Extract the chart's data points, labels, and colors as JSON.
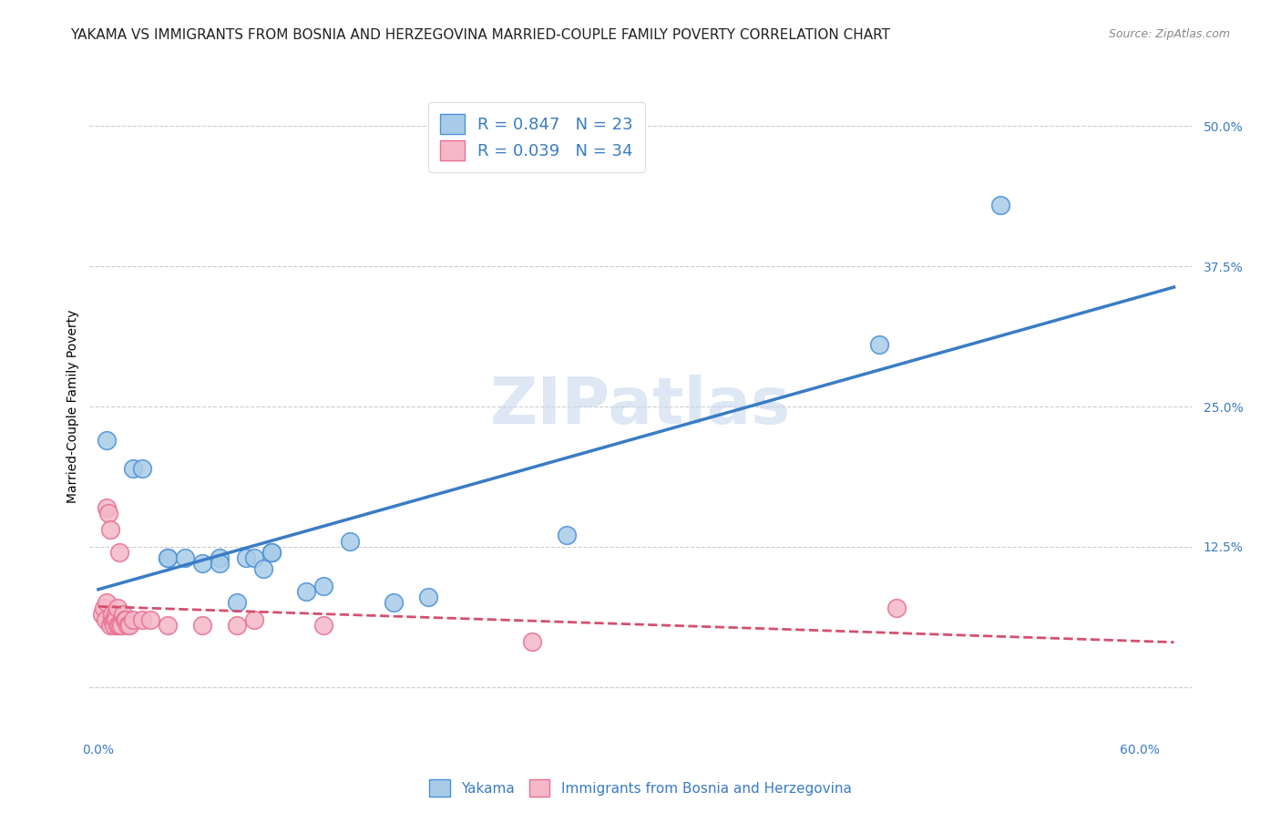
{
  "title": "YAKAMA VS IMMIGRANTS FROM BOSNIA AND HERZEGOVINA MARRIED-COUPLE FAMILY POVERTY CORRELATION CHART",
  "source": "Source: ZipAtlas.com",
  "ylabel": "Married-Couple Family Poverty",
  "xlim": [
    -0.005,
    0.63
  ],
  "ylim": [
    -0.04,
    0.54
  ],
  "xticks": [
    0.0,
    0.15,
    0.3,
    0.45,
    0.6
  ],
  "xtick_labels": [
    "0.0%",
    "",
    "",
    "",
    "60.0%"
  ],
  "yticks": [
    0.0,
    0.125,
    0.25,
    0.375,
    0.5
  ],
  "ytick_labels": [
    "",
    "12.5%",
    "25.0%",
    "37.5%",
    "50.0%"
  ],
  "watermark": "ZIPatlas",
  "blue_R": 0.847,
  "blue_N": 23,
  "pink_R": 0.039,
  "pink_N": 34,
  "blue_color": "#a8cce8",
  "pink_color": "#f4b8c8",
  "blue_edge_color": "#4a90d9",
  "pink_edge_color": "#e87090",
  "blue_line_color": "#3a7cc4",
  "pink_line_color": "#d45070",
  "blue_points": [
    [
      0.005,
      0.22
    ],
    [
      0.02,
      0.195
    ],
    [
      0.025,
      0.195
    ],
    [
      0.04,
      0.115
    ],
    [
      0.04,
      0.115
    ],
    [
      0.05,
      0.115
    ],
    [
      0.06,
      0.11
    ],
    [
      0.07,
      0.115
    ],
    [
      0.07,
      0.11
    ],
    [
      0.08,
      0.075
    ],
    [
      0.085,
      0.115
    ],
    [
      0.09,
      0.115
    ],
    [
      0.095,
      0.105
    ],
    [
      0.1,
      0.12
    ],
    [
      0.1,
      0.12
    ],
    [
      0.12,
      0.085
    ],
    [
      0.13,
      0.09
    ],
    [
      0.145,
      0.13
    ],
    [
      0.17,
      0.075
    ],
    [
      0.19,
      0.08
    ],
    [
      0.27,
      0.135
    ],
    [
      0.45,
      0.305
    ],
    [
      0.52,
      0.43
    ]
  ],
  "pink_points": [
    [
      0.002,
      0.065
    ],
    [
      0.003,
      0.07
    ],
    [
      0.004,
      0.06
    ],
    [
      0.005,
      0.075
    ],
    [
      0.005,
      0.16
    ],
    [
      0.006,
      0.155
    ],
    [
      0.007,
      0.14
    ],
    [
      0.007,
      0.055
    ],
    [
      0.008,
      0.06
    ],
    [
      0.008,
      0.065
    ],
    [
      0.009,
      0.06
    ],
    [
      0.009,
      0.055
    ],
    [
      0.01,
      0.065
    ],
    [
      0.01,
      0.06
    ],
    [
      0.011,
      0.07
    ],
    [
      0.011,
      0.055
    ],
    [
      0.012,
      0.12
    ],
    [
      0.012,
      0.055
    ],
    [
      0.013,
      0.055
    ],
    [
      0.014,
      0.065
    ],
    [
      0.015,
      0.06
    ],
    [
      0.016,
      0.06
    ],
    [
      0.017,
      0.055
    ],
    [
      0.018,
      0.055
    ],
    [
      0.02,
      0.06
    ],
    [
      0.025,
      0.06
    ],
    [
      0.03,
      0.06
    ],
    [
      0.04,
      0.055
    ],
    [
      0.06,
      0.055
    ],
    [
      0.08,
      0.055
    ],
    [
      0.09,
      0.06
    ],
    [
      0.13,
      0.055
    ],
    [
      0.25,
      0.04
    ],
    [
      0.46,
      0.07
    ]
  ],
  "background_color": "#ffffff",
  "grid_color": "#cccccc",
  "title_fontsize": 11,
  "axis_label_fontsize": 10,
  "tick_fontsize": 10,
  "legend_fontsize": 13,
  "watermark_fontsize": 52,
  "watermark_color": "#c8d8ee",
  "watermark_alpha": 0.6
}
